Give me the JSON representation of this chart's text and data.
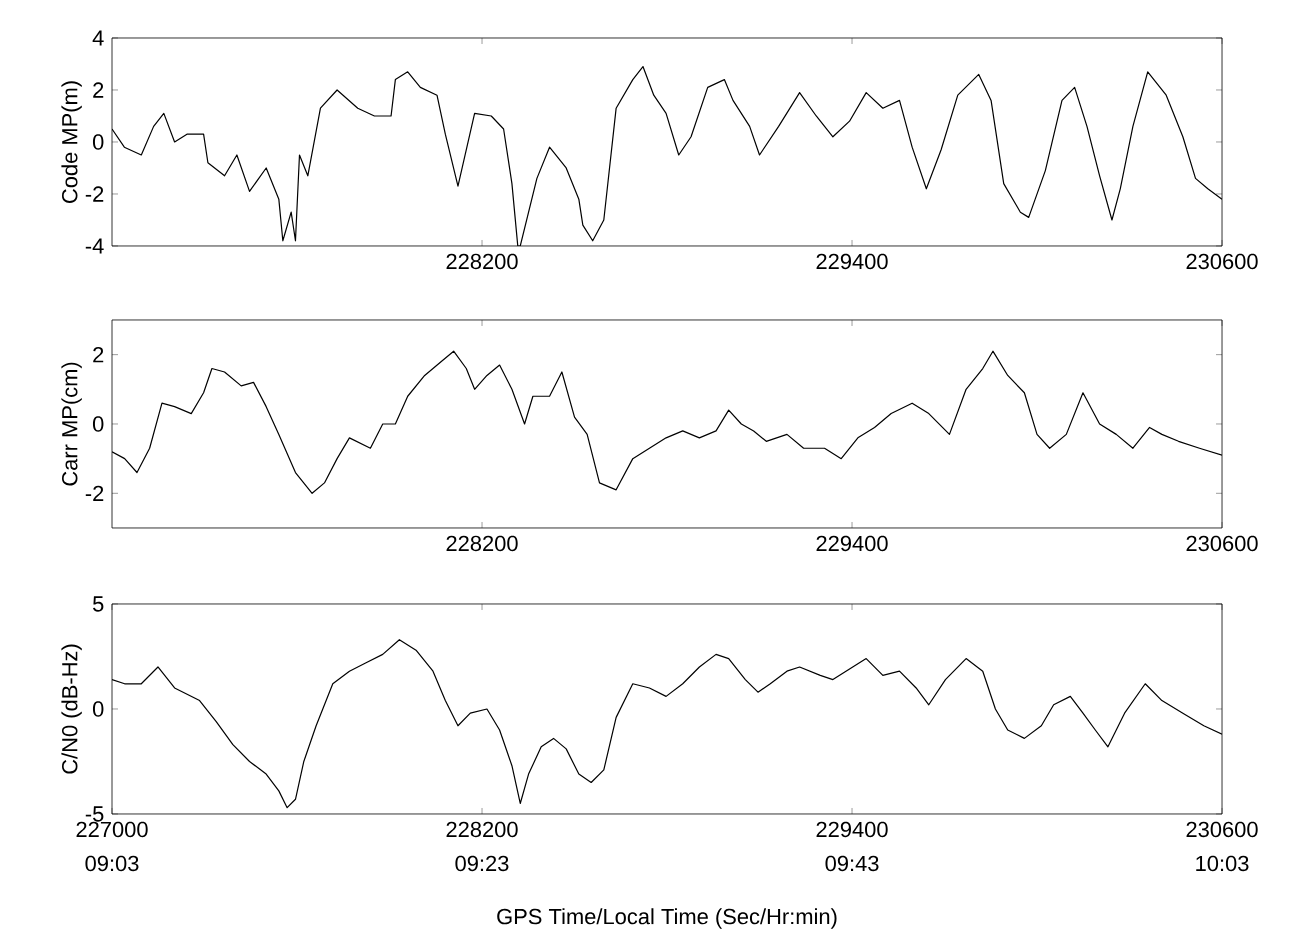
{
  "chart_data": [
    {
      "type": "line",
      "ylabel": "Code MP(m)",
      "xlim": [
        227000,
        230600
      ],
      "ylim": [
        -4,
        4
      ],
      "xticks": [
        228200,
        229400,
        230600
      ],
      "yticks": [
        -4,
        -2,
        0,
        2,
        4
      ],
      "grid": false,
      "marker": "none",
      "line_style": "solid",
      "series": [
        {
          "color": "#000000",
          "x": [
            227000,
            227040,
            227095,
            227135,
            227168,
            227203,
            227243,
            227297,
            227311,
            227365,
            227405,
            227446,
            227500,
            227541,
            227554,
            227581,
            227595,
            227608,
            227635,
            227676,
            227730,
            227797,
            227851,
            227905,
            227919,
            227959,
            228000,
            228054,
            228081,
            228122,
            228176,
            228230,
            228270,
            228297,
            228316,
            228324,
            228378,
            228419,
            228473,
            228514,
            228527,
            228559,
            228595,
            228635,
            228689,
            228722,
            228757,
            228797,
            228838,
            228878,
            228932,
            228986,
            229014,
            229068,
            229100,
            229162,
            229230,
            229284,
            229338,
            229392,
            229446,
            229500,
            229554,
            229595,
            229641,
            229689,
            229743,
            229811,
            229851,
            229892,
            229946,
            229973,
            230027,
            230081,
            230122,
            230162,
            230203,
            230243,
            230270,
            230311,
            230359,
            230419,
            230473,
            230514,
            230554,
            230600
          ],
          "values": [
            0.5,
            -0.2,
            -0.5,
            0.6,
            1.1,
            0.0,
            0.3,
            0.3,
            -0.8,
            -1.3,
            -0.5,
            -1.9,
            -1.0,
            -2.2,
            -3.8,
            -2.7,
            -3.8,
            -0.5,
            -1.3,
            1.3,
            2.0,
            1.3,
            1.0,
            1.0,
            2.4,
            2.7,
            2.1,
            1.8,
            0.3,
            -1.7,
            1.1,
            1.0,
            0.5,
            -1.6,
            -4.0,
            -4.0,
            -1.4,
            -0.2,
            -1.0,
            -2.2,
            -3.2,
            -3.8,
            -3.0,
            1.3,
            2.4,
            2.9,
            1.8,
            1.1,
            -0.5,
            0.2,
            2.1,
            2.4,
            1.6,
            0.6,
            -0.5,
            0.6,
            1.9,
            1.0,
            0.2,
            0.8,
            1.9,
            1.3,
            1.6,
            -0.2,
            -1.8,
            -0.3,
            1.8,
            2.6,
            1.6,
            -1.6,
            -2.7,
            -2.9,
            -1.1,
            1.6,
            2.1,
            0.6,
            -1.3,
            -3.0,
            -1.8,
            0.6,
            2.7,
            1.8,
            0.2,
            -1.4,
            -1.8,
            -2.2
          ]
        }
      ]
    },
    {
      "type": "line",
      "ylabel": "Carr MP(cm)",
      "xlim": [
        227000,
        230600
      ],
      "ylim": [
        -3,
        3
      ],
      "xticks": [
        228200,
        229400,
        230600
      ],
      "yticks": [
        -2,
        0,
        2
      ],
      "grid": false,
      "marker": "none",
      "line_style": "solid",
      "series": [
        {
          "color": "#000000",
          "x": [
            227000,
            227041,
            227081,
            227122,
            227162,
            227203,
            227257,
            227297,
            227324,
            227365,
            227419,
            227459,
            227500,
            227541,
            227595,
            227649,
            227689,
            227730,
            227770,
            227838,
            227878,
            227919,
            227959,
            228014,
            228068,
            228108,
            228149,
            228176,
            228216,
            228257,
            228297,
            228338,
            228365,
            228419,
            228459,
            228500,
            228541,
            228581,
            228635,
            228689,
            228743,
            228797,
            228851,
            228905,
            228959,
            229000,
            229041,
            229081,
            229122,
            229189,
            229243,
            229311,
            229365,
            229419,
            229473,
            229527,
            229595,
            229649,
            229716,
            229770,
            229824,
            229857,
            229905,
            229959,
            230000,
            230041,
            230095,
            230149,
            230203,
            230257,
            230311,
            230365,
            230405,
            230459,
            230527,
            230600
          ],
          "values": [
            -0.8,
            -1.0,
            -1.4,
            -0.7,
            0.6,
            0.5,
            0.3,
            0.9,
            1.6,
            1.5,
            1.1,
            1.2,
            0.5,
            -0.3,
            -1.4,
            -2.0,
            -1.7,
            -1.0,
            -0.4,
            -0.7,
            0.0,
            0.0,
            0.8,
            1.4,
            1.8,
            2.1,
            1.6,
            1.0,
            1.4,
            1.7,
            1.0,
            0.0,
            0.8,
            0.8,
            1.5,
            0.2,
            -0.3,
            -1.7,
            -1.9,
            -1.0,
            -0.7,
            -0.4,
            -0.2,
            -0.4,
            -0.2,
            0.4,
            0.0,
            -0.2,
            -0.5,
            -0.3,
            -0.7,
            -0.7,
            -1.0,
            -0.4,
            -0.1,
            0.3,
            0.6,
            0.3,
            -0.3,
            1.0,
            1.6,
            2.1,
            1.4,
            0.9,
            -0.3,
            -0.7,
            -0.3,
            0.9,
            0.0,
            -0.3,
            -0.7,
            -0.1,
            -0.3,
            -0.5,
            -0.7,
            -0.9
          ]
        }
      ]
    },
    {
      "type": "line",
      "xlabel": "GPS Time/Local Time (Sec/Hr:min)",
      "ylabel": "C/N0 (dB-Hz)",
      "xlim": [
        227000,
        230600
      ],
      "ylim": [
        -5,
        5
      ],
      "xticks": [
        227000,
        228200,
        229400,
        230600
      ],
      "x2lim": [
        9.05,
        10.05
      ],
      "x2ticks": [
        {
          "value": 9.05,
          "label": "09:03"
        },
        {
          "value": 9.3833,
          "label": "09:23"
        },
        {
          "value": 9.7167,
          "label": "09:43"
        },
        {
          "value": 10.05,
          "label": "10:03"
        }
      ],
      "yticks": [
        -5,
        0,
        5
      ],
      "grid": false,
      "marker": "none",
      "line_style": "solid",
      "series": [
        {
          "color": "#000000",
          "x": [
            227000,
            227041,
            227095,
            227149,
            227203,
            227284,
            227338,
            227392,
            227446,
            227500,
            227541,
            227568,
            227595,
            227622,
            227662,
            227716,
            227770,
            227824,
            227878,
            227932,
            227986,
            228041,
            228081,
            228122,
            228162,
            228216,
            228257,
            228297,
            228324,
            228351,
            228392,
            228432,
            228473,
            228514,
            228554,
            228595,
            228635,
            228689,
            228743,
            228797,
            228851,
            228905,
            228959,
            229000,
            229054,
            229095,
            229135,
            229189,
            229230,
            229297,
            229338,
            229446,
            229500,
            229554,
            229608,
            229649,
            229703,
            229770,
            229824,
            229865,
            229905,
            229959,
            230014,
            230054,
            230108,
            230149,
            230189,
            230230,
            230284,
            230351,
            230405,
            230473,
            230541,
            230600
          ],
          "values": [
            1.4,
            1.2,
            1.2,
            2.0,
            1.0,
            0.4,
            -0.6,
            -1.7,
            -2.5,
            -3.1,
            -3.9,
            -4.7,
            -4.3,
            -2.5,
            -0.8,
            1.2,
            1.8,
            2.2,
            2.6,
            3.3,
            2.8,
            1.8,
            0.4,
            -0.8,
            -0.2,
            0.0,
            -1.0,
            -2.7,
            -4.5,
            -3.1,
            -1.8,
            -1.4,
            -1.9,
            -3.1,
            -3.5,
            -2.9,
            -0.4,
            1.2,
            1.0,
            0.6,
            1.2,
            2.0,
            2.6,
            2.4,
            1.4,
            0.8,
            1.2,
            1.8,
            2.0,
            1.6,
            1.4,
            2.4,
            1.6,
            1.8,
            1.0,
            0.2,
            1.4,
            2.4,
            1.8,
            0.0,
            -1.0,
            -1.4,
            -0.8,
            0.2,
            0.6,
            -0.2,
            -1.0,
            -1.8,
            -0.2,
            1.2,
            0.4,
            -0.2,
            -0.8,
            -1.2
          ]
        }
      ]
    }
  ]
}
